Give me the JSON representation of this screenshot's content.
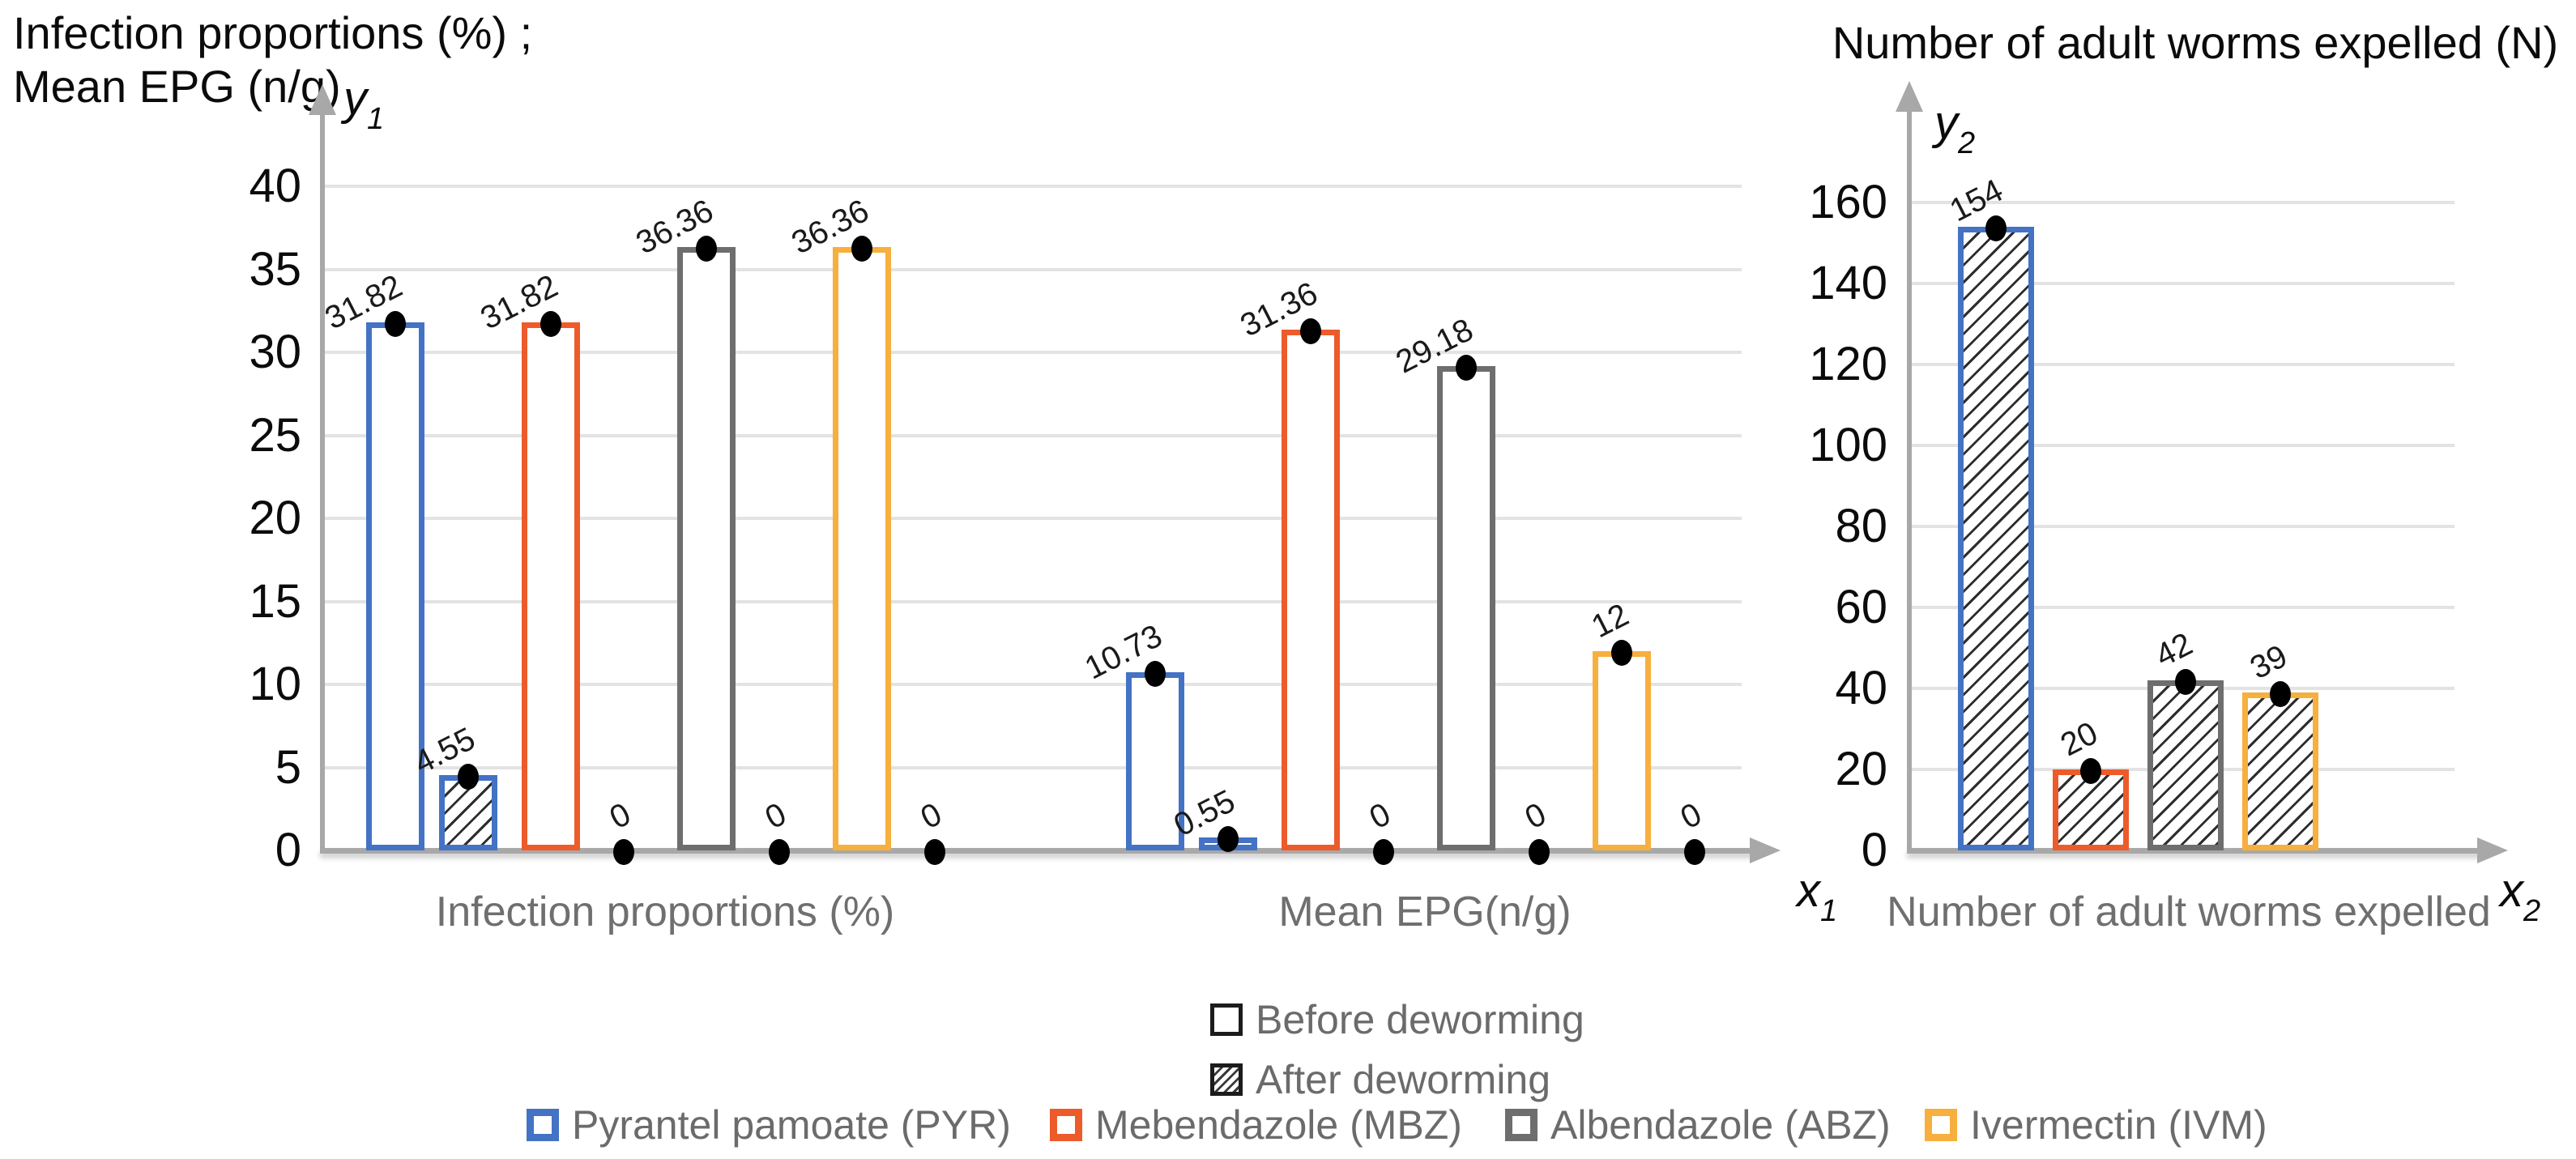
{
  "page_title_left": {
    "line1": "Infection proportions (%) ;",
    "line2": "Mean EPG (n/g)"
  },
  "page_title_right": "Number of adult worms expelled (N)",
  "axis_labels": {
    "y1": {
      "base": "y",
      "sub": "1"
    },
    "x1": {
      "base": "x",
      "sub": "1"
    },
    "y2": {
      "base": "y",
      "sub": "2"
    },
    "x2": {
      "base": "x",
      "sub": "2"
    }
  },
  "legend_phase": [
    {
      "label": "Before deworming",
      "style": "open"
    },
    {
      "label": "After deworming",
      "style": "hatched"
    }
  ],
  "legend_drugs": [
    {
      "label": "Pyrantel pamoate (PYR)",
      "color": "#4472C4"
    },
    {
      "label": "Mebendazole (MBZ)",
      "color": "#ED5B2B"
    },
    {
      "label": "Albendazole (ABZ)",
      "color": "#6E6E6E"
    },
    {
      "label": "Ivermectin (IVM)",
      "color": "#F7AF3D"
    }
  ],
  "colors": {
    "axis": "#A8A8A8",
    "gridline": "#E3E3E3",
    "dot": "#000000",
    "category_text": "#6F6F6F",
    "legend_text": "#6B6B6B",
    "tick_text": "#0B0B0B"
  },
  "chart_data": [
    {
      "type": "bar",
      "title": "Infection proportions (%) ; Mean EPG (n/g)",
      "ylabel": "y1",
      "xlabel": "x1",
      "ylim": [
        0,
        40
      ],
      "ytick_step": 5,
      "yticks": [
        40,
        35,
        30,
        25,
        20,
        15,
        10,
        5,
        0
      ],
      "grid": true,
      "legend_position": "bottom",
      "categories": [
        "Infection proportions (%)",
        "Mean EPG(n/g)"
      ],
      "groups": [
        {
          "category": "Infection proportions (%)",
          "pairs": [
            {
              "drug": "Pyrantel pamoate (PYR)",
              "color": "#4472C4",
              "before": {
                "value": 31.82,
                "label": "31.82"
              },
              "after": {
                "value": 4.55,
                "label": "4.55"
              }
            },
            {
              "drug": "Mebendazole (MBZ)",
              "color": "#ED5B2B",
              "before": {
                "value": 31.82,
                "label": "31.82"
              },
              "after": {
                "value": 0,
                "label": "0"
              }
            },
            {
              "drug": "Albendazole (ABZ)",
              "color": "#6E6E6E",
              "before": {
                "value": 36.36,
                "label": "36.36"
              },
              "after": {
                "value": 0,
                "label": "0"
              }
            },
            {
              "drug": "Ivermectin (IVM)",
              "color": "#F7AF3D",
              "before": {
                "value": 36.36,
                "label": "36.36"
              },
              "after": {
                "value": 0,
                "label": "0"
              }
            }
          ]
        },
        {
          "category": "Mean EPG(n/g)",
          "pairs": [
            {
              "drug": "Pyrantel pamoate (PYR)",
              "color": "#4472C4",
              "before": {
                "value": 10.73,
                "label": "10.73"
              },
              "after": {
                "value": 0.55,
                "label": "0.55"
              }
            },
            {
              "drug": "Mebendazole (MBZ)",
              "color": "#ED5B2B",
              "before": {
                "value": 31.36,
                "label": "31.36"
              },
              "after": {
                "value": 0,
                "label": "0"
              }
            },
            {
              "drug": "Albendazole (ABZ)",
              "color": "#6E6E6E",
              "before": {
                "value": 29.18,
                "label": "29.18"
              },
              "after": {
                "value": 0,
                "label": "0"
              }
            },
            {
              "drug": "Ivermectin (IVM)",
              "color": "#F7AF3D",
              "before": {
                "value": 12,
                "label": "12"
              },
              "after": {
                "value": 0,
                "label": "0"
              }
            }
          ]
        }
      ]
    },
    {
      "type": "bar",
      "title": "Number of adult worms expelled (N)",
      "ylabel": "y2",
      "xlabel": "x2",
      "ylim": [
        0,
        160
      ],
      "ytick_step": 20,
      "yticks": [
        160,
        140,
        120,
        100,
        80,
        60,
        40,
        20,
        0
      ],
      "grid": true,
      "categories": [
        "Number of adult worms expelled"
      ],
      "bars": [
        {
          "drug": "Pyrantel pamoate (PYR)",
          "color": "#4472C4",
          "value": 154,
          "label": "154",
          "fill": "hatched"
        },
        {
          "drug": "Mebendazole (MBZ)",
          "color": "#ED5B2B",
          "value": 20,
          "label": "20",
          "fill": "hatched"
        },
        {
          "drug": "Albendazole (ABZ)",
          "color": "#6E6E6E",
          "value": 42,
          "label": "42",
          "fill": "hatched"
        },
        {
          "drug": "Ivermectin (IVM)",
          "color": "#F7AF3D",
          "value": 39,
          "label": "39",
          "fill": "hatched"
        }
      ]
    }
  ]
}
